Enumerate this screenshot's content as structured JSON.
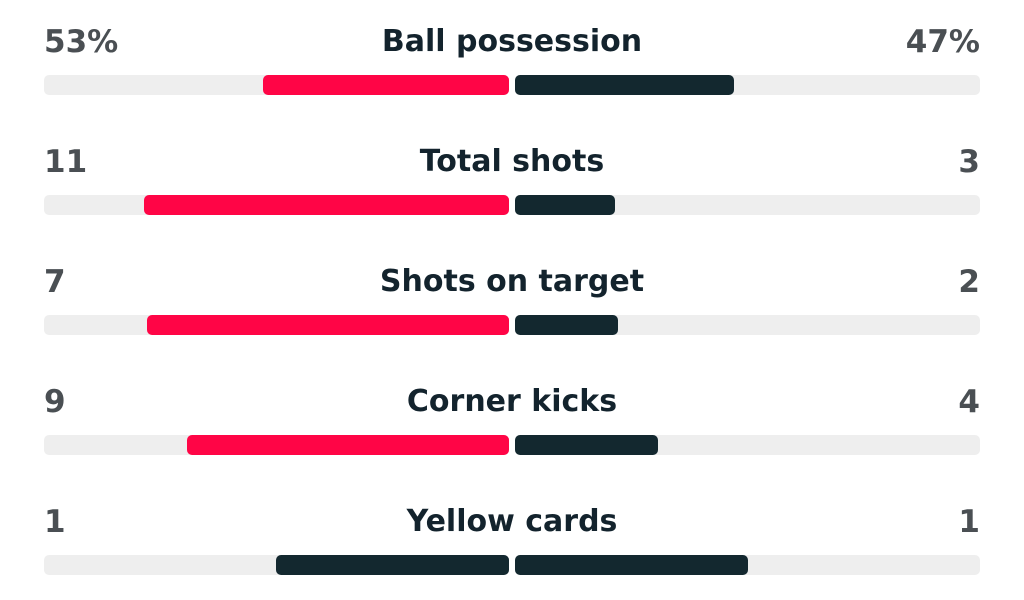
{
  "colors": {
    "home_leading": "#ff0546",
    "away": "#13282f",
    "home_tied": "#13282f",
    "track": "#eeeeee"
  },
  "stats": [
    {
      "label": "Ball possession",
      "home": "53%",
      "away": "47%",
      "home_fraction": 0.53,
      "away_fraction": 0.47,
      "home_color": "#ff0546",
      "away_color": "#13282f"
    },
    {
      "label": "Total shots",
      "home": "11",
      "away": "3",
      "home_fraction": 0.786,
      "away_fraction": 0.214,
      "home_color": "#ff0546",
      "away_color": "#13282f"
    },
    {
      "label": "Shots on target",
      "home": "7",
      "away": "2",
      "home_fraction": 0.778,
      "away_fraction": 0.222,
      "home_color": "#ff0546",
      "away_color": "#13282f"
    },
    {
      "label": "Corner kicks",
      "home": "9",
      "away": "4",
      "home_fraction": 0.692,
      "away_fraction": 0.308,
      "home_color": "#ff0546",
      "away_color": "#13282f"
    },
    {
      "label": "Yellow cards",
      "home": "1",
      "away": "1",
      "home_fraction": 0.5,
      "away_fraction": 0.5,
      "home_color": "#13282f",
      "away_color": "#13282f"
    }
  ]
}
